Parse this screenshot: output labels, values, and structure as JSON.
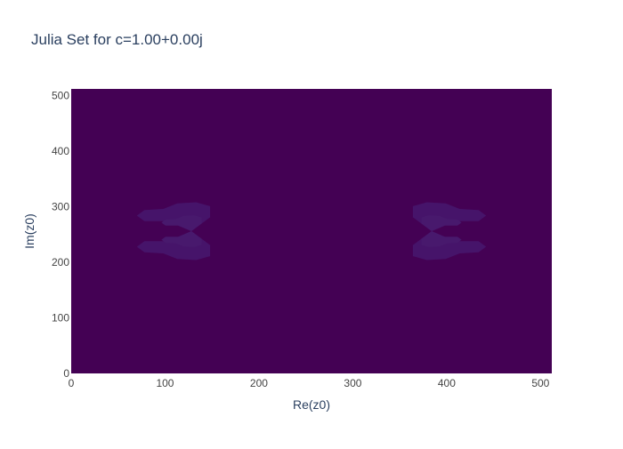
{
  "chart_data": {
    "type": "heatmap",
    "title": "Julia Set for c=1.00+0.00j",
    "xlabel": "Re(z0)",
    "ylabel": "Im(z0)",
    "xlim": [
      0,
      512
    ],
    "ylim": [
      0,
      512
    ],
    "x_ticks": [
      0,
      100,
      200,
      300,
      400,
      500
    ],
    "y_ticks": [
      0,
      100,
      200,
      300,
      400,
      500
    ],
    "x_tick_labels": [
      "0",
      "100",
      "200",
      "300",
      "400",
      "500"
    ],
    "y_tick_labels": [
      "0",
      "100",
      "200",
      "300",
      "400",
      "500"
    ],
    "grid": false,
    "colorscale": "viridis",
    "background_color": "#440154",
    "highlight_color": "#46146a",
    "highlight_inner_color": "#48196d",
    "text_color": "#2a3f5f",
    "axis_color": "#444444",
    "c_real": 1.0,
    "c_imag": 0.0
  }
}
